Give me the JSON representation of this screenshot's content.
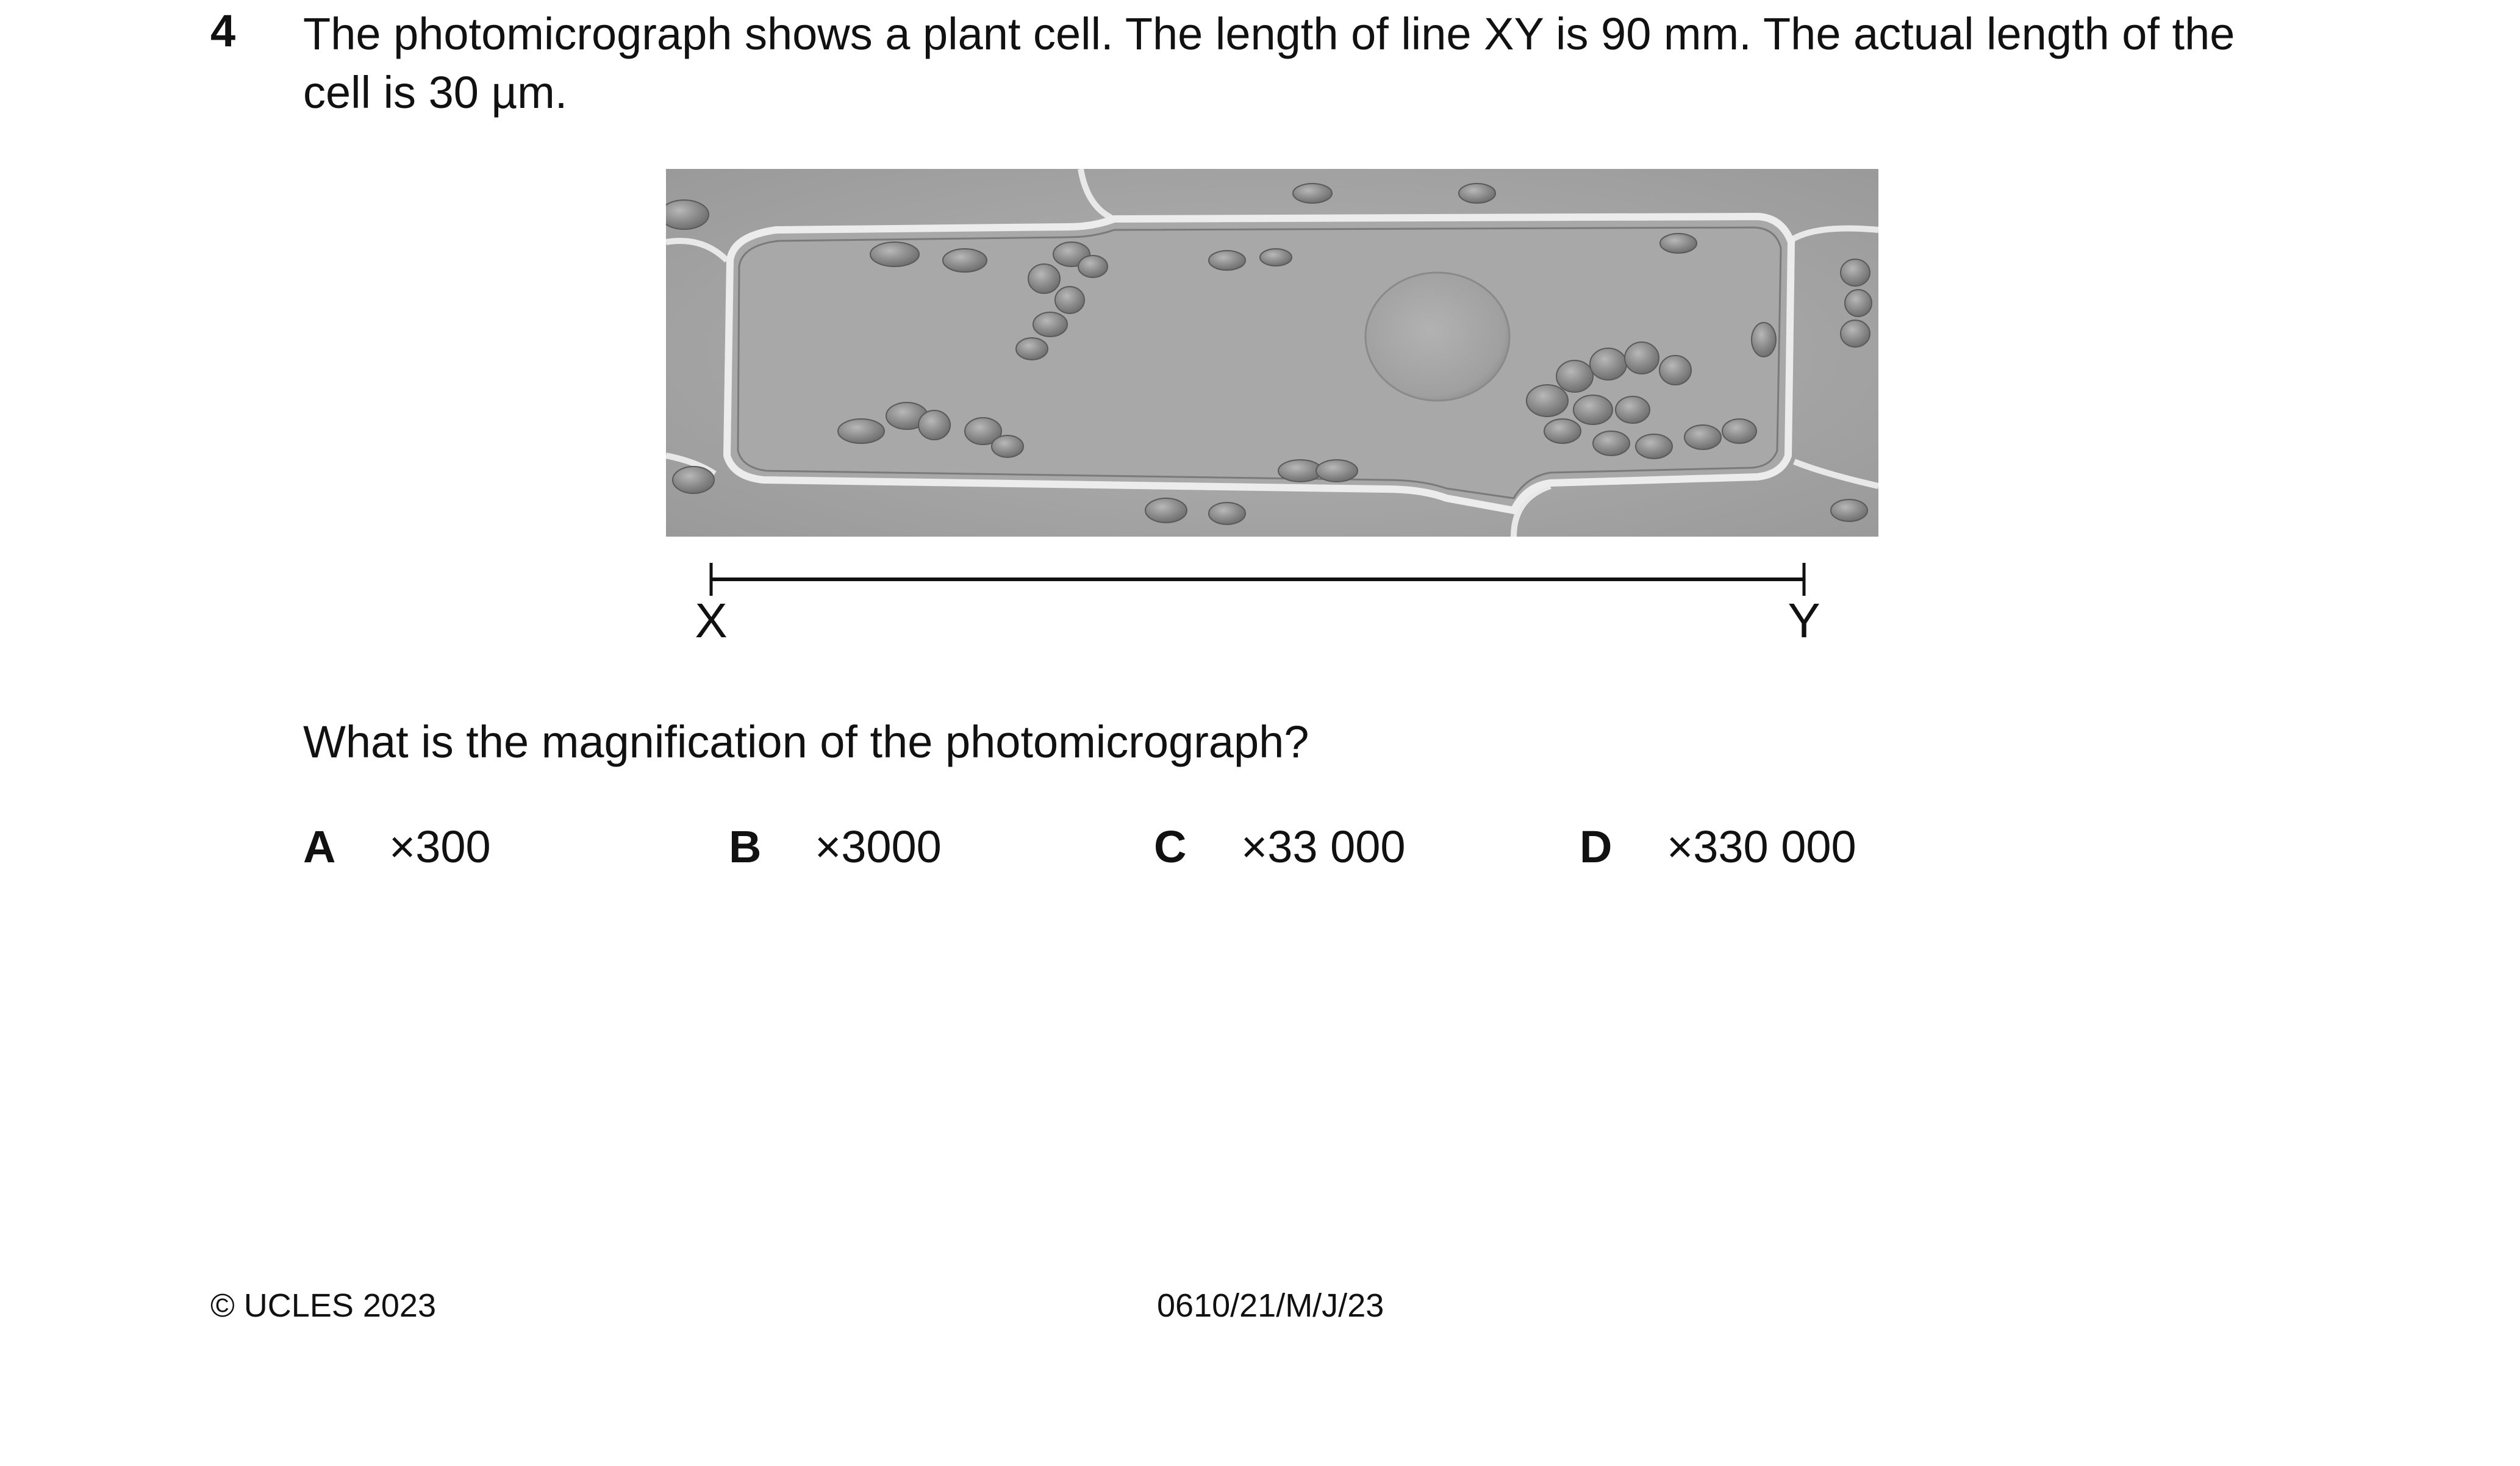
{
  "question": {
    "number": "4",
    "stem_line1": "The photomicrograph shows a plant cell. The length of line XY is 90 mm. The actual length of the",
    "stem_line2": "cell is 30 µm.",
    "prompt": "What is the magnification of the photomicrograph?"
  },
  "figure": {
    "label_x": "X",
    "label_y": "Y"
  },
  "options": [
    {
      "letter": "A",
      "value": "×300"
    },
    {
      "letter": "B",
      "value": "×3000"
    },
    {
      "letter": "C",
      "value": "×33 000"
    },
    {
      "letter": "D",
      "value": "×330 000"
    }
  ],
  "footer": {
    "copyright": "© UCLES 2023",
    "code": "0610/21/M/J/23"
  }
}
